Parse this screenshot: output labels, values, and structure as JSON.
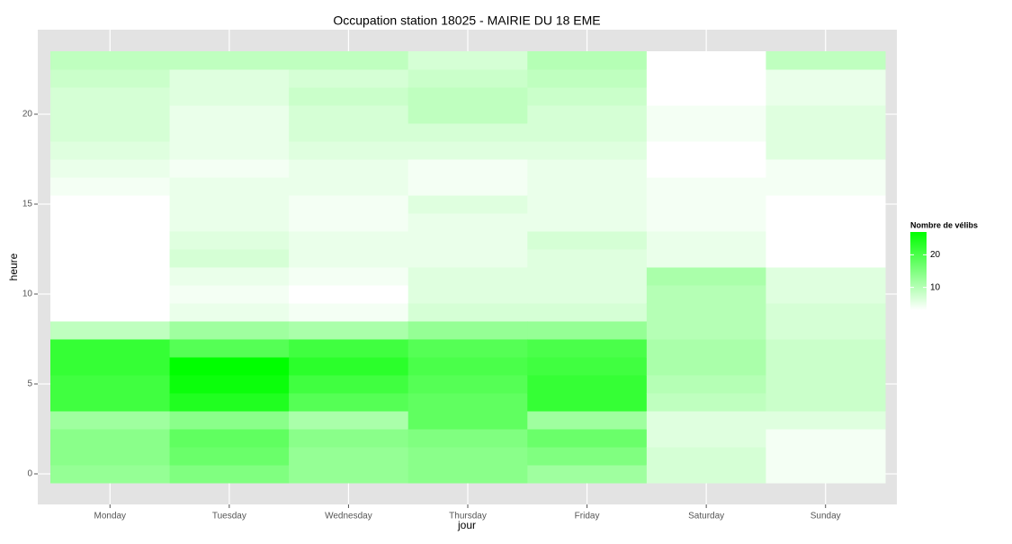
{
  "chart_data": {
    "type": "heatmap",
    "title": "Occupation station 18025 - MAIRIE DU 18 EME",
    "xlabel": "jour",
    "ylabel": "heure",
    "x": [
      "Monday",
      "Tuesday",
      "Wednesday",
      "Thursday",
      "Friday",
      "Saturday",
      "Sunday"
    ],
    "y": [
      0,
      1,
      2,
      3,
      4,
      5,
      6,
      7,
      8,
      9,
      10,
      11,
      12,
      13,
      14,
      15,
      16,
      17,
      18,
      19,
      20,
      21,
      22,
      23
    ],
    "values": [
      [
        13,
        14,
        14,
        12,
        21,
        21,
        22,
        22,
        9,
        3,
        3,
        3,
        3,
        3,
        3,
        3,
        4,
        5,
        6,
        7,
        7,
        7,
        8,
        9
      ],
      [
        15,
        17,
        18,
        14,
        24,
        26,
        27,
        19,
        12,
        5,
        4,
        5,
        7,
        6,
        5,
        5,
        5,
        4,
        5,
        5,
        5,
        6,
        6,
        9
      ],
      [
        13,
        13,
        14,
        11,
        19,
        21,
        23,
        21,
        11,
        4,
        3,
        4,
        5,
        5,
        4,
        4,
        5,
        5,
        6,
        7,
        7,
        8,
        7,
        9
      ],
      [
        14,
        14,
        15,
        18,
        18,
        19,
        20,
        19,
        13,
        7,
        6,
        6,
        5,
        5,
        5,
        6,
        4,
        4,
        6,
        7,
        9,
        9,
        8,
        7
      ],
      [
        12,
        15,
        17,
        12,
        22,
        22,
        21,
        20,
        13,
        7,
        6,
        6,
        6,
        7,
        5,
        5,
        5,
        5,
        6,
        7,
        7,
        8,
        9,
        10
      ],
      [
        7,
        7,
        6,
        6,
        9,
        10,
        11,
        11,
        10,
        10,
        10,
        11,
        5,
        5,
        4,
        4,
        4,
        3,
        3,
        4,
        4,
        3,
        3,
        3
      ],
      [
        4,
        4,
        4,
        6,
        8,
        8,
        8,
        8,
        7,
        7,
        6,
        6,
        3,
        3,
        3,
        3,
        4,
        4,
        6,
        6,
        6,
        5,
        5,
        9
      ]
    ],
    "ylim": [
      -1.7,
      24.7
    ],
    "yticks": [
      0,
      5,
      10,
      15,
      20
    ],
    "color_low": "#ffffff",
    "color_high": "#00ff00",
    "legend_title": "Nombre de vélibs",
    "legend_ticks": [
      10,
      20
    ],
    "grid": true
  }
}
